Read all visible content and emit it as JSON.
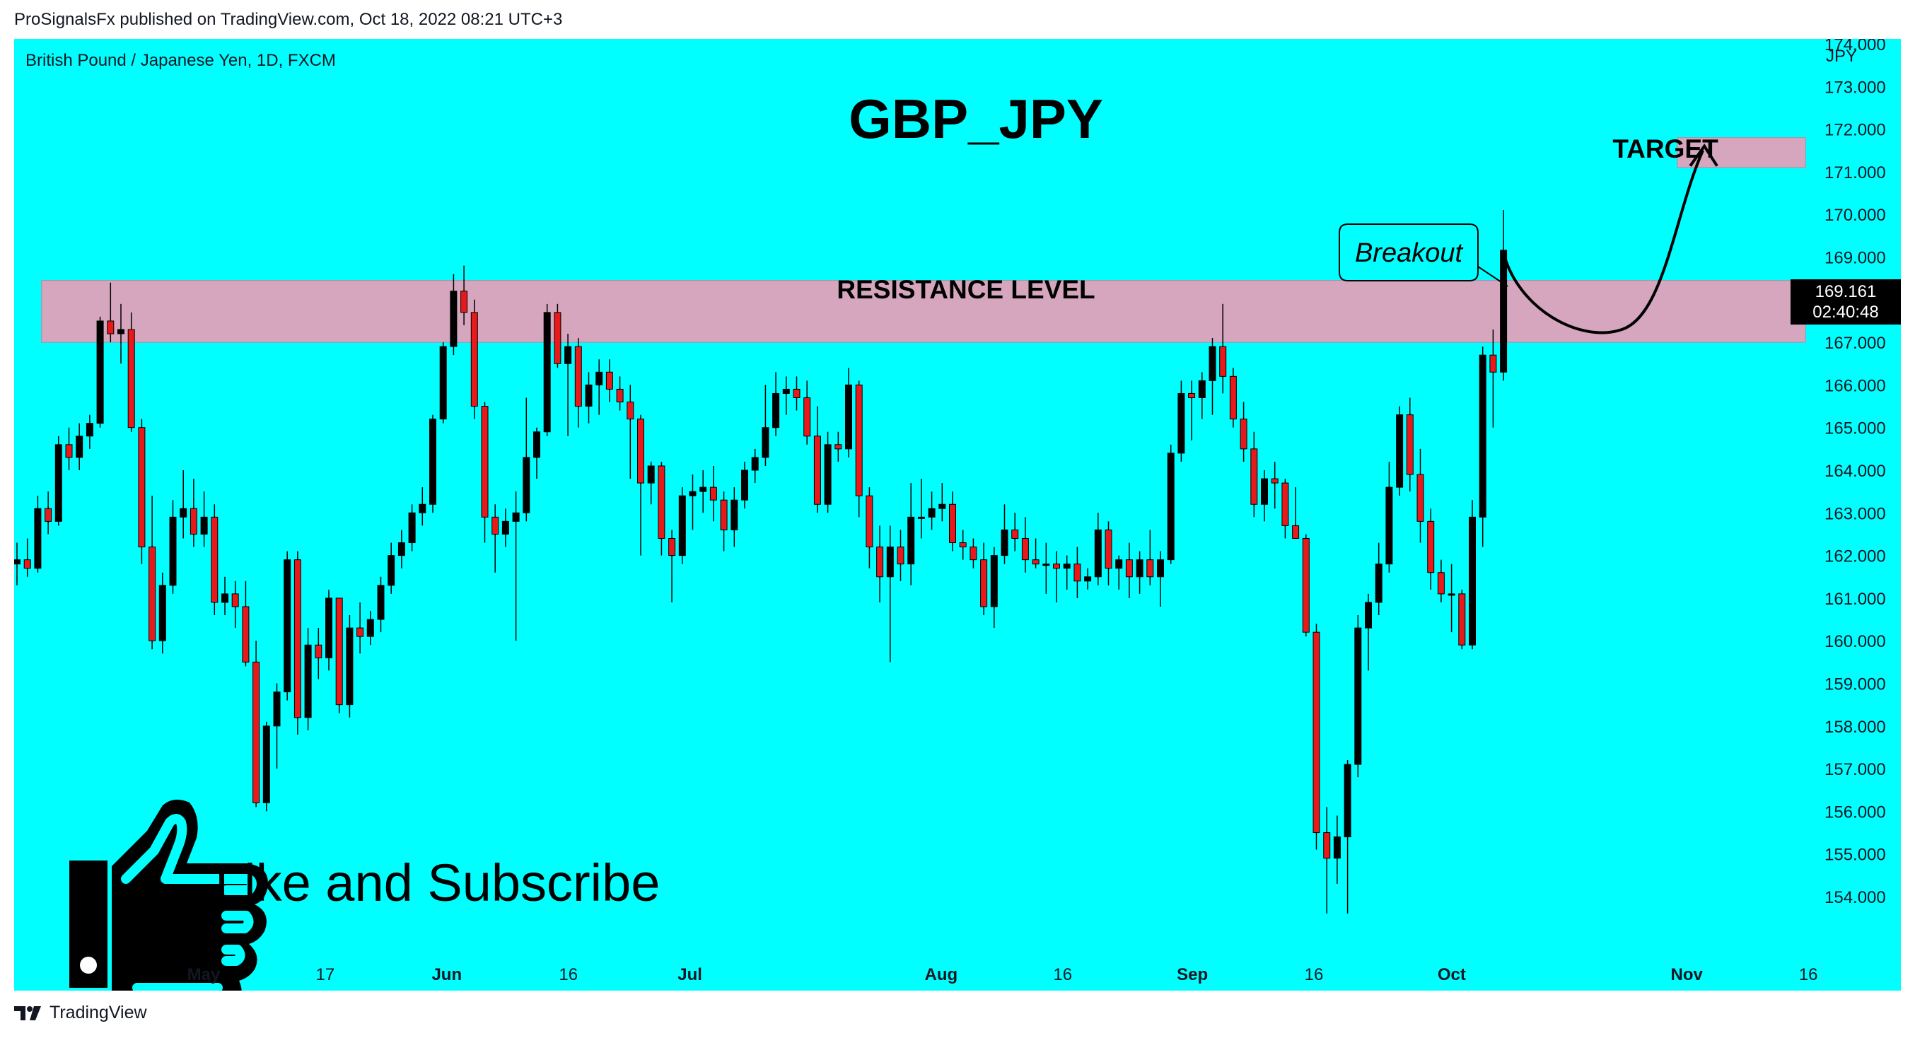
{
  "header": {
    "published_line": "ProSignalsFx published on TradingView.com, Oct 18, 2022 08:21 UTC+3"
  },
  "footer": {
    "brand": "TradingView",
    "logo_icon": "tradingview-logo-icon"
  },
  "colors": {
    "background": "#00ffff",
    "zone": "#d5a6bd",
    "bull": "#000000",
    "bear": "#e8191a",
    "price_tag": "#000000"
  },
  "chart_data": {
    "type": "candlestick",
    "symbol_line": "British Pound / Japanese Yen, 1D, FXCM",
    "title": "GBP_JPY",
    "currency": "JPY",
    "ylim": [
      153.5,
      174.3
    ],
    "y_ticks": [
      "174.000",
      "173.000",
      "172.000",
      "171.000",
      "170.000",
      "169.000",
      "168.000",
      "167.000",
      "166.000",
      "165.000",
      "164.000",
      "163.000",
      "162.000",
      "161.000",
      "160.000",
      "159.000",
      "158.000",
      "157.000",
      "156.000",
      "155.000",
      "154.000"
    ],
    "x_labels": [
      {
        "label": "May",
        "date": "2022-05-02",
        "bold": true
      },
      {
        "label": "17",
        "date": "2022-05-17",
        "bold": false
      },
      {
        "label": "Jun",
        "date": "2022-06-01",
        "bold": true
      },
      {
        "label": "16",
        "date": "2022-06-16",
        "bold": false
      },
      {
        "label": "Jul",
        "date": "2022-07-01",
        "bold": true
      },
      {
        "label": "Aug",
        "date": "2022-08-01",
        "bold": true
      },
      {
        "label": "16",
        "date": "2022-08-16",
        "bold": false
      },
      {
        "label": "Sep",
        "date": "2022-09-01",
        "bold": true
      },
      {
        "label": "16",
        "date": "2022-09-16",
        "bold": false
      },
      {
        "label": "Oct",
        "date": "2022-10-03",
        "bold": true
      },
      {
        "label": "Nov",
        "date": "2022-11-01",
        "bold": true
      },
      {
        "label": "16",
        "date": "2022-11-16",
        "bold": false
      }
    ],
    "candles": [
      {
        "o": 161.8,
        "h": 162.3,
        "l": 161.3,
        "c": 161.9
      },
      {
        "o": 161.9,
        "h": 162.4,
        "l": 161.5,
        "c": 161.7
      },
      {
        "o": 161.7,
        "h": 163.4,
        "l": 161.6,
        "c": 163.1
      },
      {
        "o": 163.1,
        "h": 163.5,
        "l": 162.5,
        "c": 162.8
      },
      {
        "o": 162.8,
        "h": 164.8,
        "l": 162.7,
        "c": 164.6
      },
      {
        "o": 164.6,
        "h": 165.0,
        "l": 164.0,
        "c": 164.3
      },
      {
        "o": 164.3,
        "h": 165.1,
        "l": 164.0,
        "c": 164.8
      },
      {
        "o": 164.8,
        "h": 165.3,
        "l": 164.5,
        "c": 165.1
      },
      {
        "o": 165.1,
        "h": 167.6,
        "l": 165.0,
        "c": 167.5
      },
      {
        "o": 167.5,
        "h": 168.4,
        "l": 167.0,
        "c": 167.2
      },
      {
        "o": 167.2,
        "h": 167.9,
        "l": 166.5,
        "c": 167.3
      },
      {
        "o": 167.3,
        "h": 167.7,
        "l": 164.9,
        "c": 165.0
      },
      {
        "o": 165.0,
        "h": 165.2,
        "l": 161.8,
        "c": 162.2
      },
      {
        "o": 162.2,
        "h": 163.4,
        "l": 159.8,
        "c": 160.0
      },
      {
        "o": 160.0,
        "h": 161.6,
        "l": 159.7,
        "c": 161.3
      },
      {
        "o": 161.3,
        "h": 163.3,
        "l": 161.1,
        "c": 162.9
      },
      {
        "o": 162.9,
        "h": 164.0,
        "l": 162.4,
        "c": 163.1
      },
      {
        "o": 163.1,
        "h": 163.8,
        "l": 162.2,
        "c": 162.5
      },
      {
        "o": 162.5,
        "h": 163.5,
        "l": 162.2,
        "c": 162.9
      },
      {
        "o": 162.9,
        "h": 163.2,
        "l": 160.6,
        "c": 160.9
      },
      {
        "o": 160.9,
        "h": 161.5,
        "l": 160.6,
        "c": 161.1
      },
      {
        "o": 161.1,
        "h": 161.4,
        "l": 160.3,
        "c": 160.8
      },
      {
        "o": 160.8,
        "h": 161.4,
        "l": 159.4,
        "c": 159.5
      },
      {
        "o": 159.5,
        "h": 160.0,
        "l": 156.1,
        "c": 156.2
      },
      {
        "o": 156.2,
        "h": 158.1,
        "l": 156.0,
        "c": 158.0
      },
      {
        "o": 158.0,
        "h": 159.0,
        "l": 157.0,
        "c": 158.8
      },
      {
        "o": 158.8,
        "h": 162.1,
        "l": 158.6,
        "c": 161.9
      },
      {
        "o": 161.9,
        "h": 162.1,
        "l": 157.8,
        "c": 158.2
      },
      {
        "o": 158.2,
        "h": 160.3,
        "l": 157.9,
        "c": 159.9
      },
      {
        "o": 159.9,
        "h": 160.3,
        "l": 159.1,
        "c": 159.6
      },
      {
        "o": 159.6,
        "h": 161.2,
        "l": 159.3,
        "c": 161.0
      },
      {
        "o": 161.0,
        "h": 161.0,
        "l": 158.3,
        "c": 158.5
      },
      {
        "o": 158.5,
        "h": 160.6,
        "l": 158.2,
        "c": 160.3
      },
      {
        "o": 160.3,
        "h": 160.9,
        "l": 159.7,
        "c": 160.1
      },
      {
        "o": 160.1,
        "h": 160.7,
        "l": 159.9,
        "c": 160.5
      },
      {
        "o": 160.5,
        "h": 161.5,
        "l": 160.2,
        "c": 161.3
      },
      {
        "o": 161.3,
        "h": 162.3,
        "l": 161.1,
        "c": 162.0
      },
      {
        "o": 162.0,
        "h": 162.6,
        "l": 161.7,
        "c": 162.3
      },
      {
        "o": 162.3,
        "h": 163.2,
        "l": 162.1,
        "c": 163.0
      },
      {
        "o": 163.0,
        "h": 163.6,
        "l": 162.7,
        "c": 163.2
      },
      {
        "o": 163.2,
        "h": 165.3,
        "l": 163.0,
        "c": 165.2
      },
      {
        "o": 165.2,
        "h": 167.0,
        "l": 165.1,
        "c": 166.9
      },
      {
        "o": 166.9,
        "h": 168.6,
        "l": 166.7,
        "c": 168.2
      },
      {
        "o": 168.2,
        "h": 168.8,
        "l": 167.4,
        "c": 167.7
      },
      {
        "o": 167.7,
        "h": 168.0,
        "l": 165.2,
        "c": 165.5
      },
      {
        "o": 165.5,
        "h": 165.6,
        "l": 162.3,
        "c": 162.9
      },
      {
        "o": 162.9,
        "h": 163.2,
        "l": 161.6,
        "c": 162.5
      },
      {
        "o": 162.5,
        "h": 163.1,
        "l": 162.2,
        "c": 162.8
      },
      {
        "o": 162.8,
        "h": 163.5,
        "l": 160.0,
        "c": 163.0
      },
      {
        "o": 163.0,
        "h": 165.7,
        "l": 162.8,
        "c": 164.3
      },
      {
        "o": 164.3,
        "h": 165.0,
        "l": 163.8,
        "c": 164.9
      },
      {
        "o": 164.9,
        "h": 167.9,
        "l": 164.8,
        "c": 167.7
      },
      {
        "o": 167.7,
        "h": 167.9,
        "l": 166.4,
        "c": 166.5
      },
      {
        "o": 166.5,
        "h": 167.2,
        "l": 164.8,
        "c": 166.9
      },
      {
        "o": 166.9,
        "h": 167.1,
        "l": 165.0,
        "c": 165.5
      },
      {
        "o": 165.5,
        "h": 166.3,
        "l": 165.1,
        "c": 166.0
      },
      {
        "o": 166.0,
        "h": 166.6,
        "l": 165.3,
        "c": 166.3
      },
      {
        "o": 166.3,
        "h": 166.6,
        "l": 165.6,
        "c": 165.9
      },
      {
        "o": 165.9,
        "h": 166.2,
        "l": 165.4,
        "c": 165.6
      },
      {
        "o": 165.6,
        "h": 166.0,
        "l": 163.8,
        "c": 165.2
      },
      {
        "o": 165.2,
        "h": 165.3,
        "l": 162.0,
        "c": 163.7
      },
      {
        "o": 163.7,
        "h": 164.2,
        "l": 163.2,
        "c": 164.1
      },
      {
        "o": 164.1,
        "h": 164.2,
        "l": 162.0,
        "c": 162.4
      },
      {
        "o": 162.4,
        "h": 162.6,
        "l": 160.9,
        "c": 162.0
      },
      {
        "o": 162.0,
        "h": 163.6,
        "l": 161.8,
        "c": 163.4
      },
      {
        "o": 163.4,
        "h": 163.9,
        "l": 162.6,
        "c": 163.5
      },
      {
        "o": 163.5,
        "h": 164.0,
        "l": 163.0,
        "c": 163.6
      },
      {
        "o": 163.6,
        "h": 164.1,
        "l": 162.8,
        "c": 163.3
      },
      {
        "o": 163.3,
        "h": 163.5,
        "l": 162.1,
        "c": 162.6
      },
      {
        "o": 162.6,
        "h": 163.6,
        "l": 162.2,
        "c": 163.3
      },
      {
        "o": 163.3,
        "h": 164.2,
        "l": 163.1,
        "c": 164.0
      },
      {
        "o": 164.0,
        "h": 164.5,
        "l": 163.7,
        "c": 164.3
      },
      {
        "o": 164.3,
        "h": 166.0,
        "l": 164.1,
        "c": 165.0
      },
      {
        "o": 165.0,
        "h": 166.3,
        "l": 164.8,
        "c": 165.8
      },
      {
        "o": 165.8,
        "h": 166.2,
        "l": 165.3,
        "c": 165.9
      },
      {
        "o": 165.9,
        "h": 166.2,
        "l": 165.4,
        "c": 165.7
      },
      {
        "o": 165.7,
        "h": 166.1,
        "l": 164.6,
        "c": 164.8
      },
      {
        "o": 164.8,
        "h": 165.5,
        "l": 163.0,
        "c": 163.2
      },
      {
        "o": 163.2,
        "h": 164.9,
        "l": 163.0,
        "c": 164.6
      },
      {
        "o": 164.6,
        "h": 164.9,
        "l": 164.2,
        "c": 164.5
      },
      {
        "o": 164.5,
        "h": 166.4,
        "l": 164.3,
        "c": 166.0
      },
      {
        "o": 166.0,
        "h": 166.1,
        "l": 162.9,
        "c": 163.4
      },
      {
        "o": 163.4,
        "h": 163.6,
        "l": 161.7,
        "c": 162.2
      },
      {
        "o": 162.2,
        "h": 162.7,
        "l": 160.9,
        "c": 161.5
      },
      {
        "o": 161.5,
        "h": 162.7,
        "l": 159.5,
        "c": 162.2
      },
      {
        "o": 162.2,
        "h": 162.6,
        "l": 161.4,
        "c": 161.8
      },
      {
        "o": 161.8,
        "h": 163.7,
        "l": 161.3,
        "c": 162.9
      },
      {
        "o": 162.9,
        "h": 163.8,
        "l": 162.4,
        "c": 162.9
      },
      {
        "o": 162.9,
        "h": 163.5,
        "l": 162.6,
        "c": 163.1
      },
      {
        "o": 163.1,
        "h": 163.7,
        "l": 162.8,
        "c": 163.2
      },
      {
        "o": 163.2,
        "h": 163.5,
        "l": 162.1,
        "c": 162.3
      },
      {
        "o": 162.3,
        "h": 162.6,
        "l": 161.9,
        "c": 162.2
      },
      {
        "o": 162.2,
        "h": 162.4,
        "l": 161.7,
        "c": 161.9
      },
      {
        "o": 161.9,
        "h": 162.3,
        "l": 160.6,
        "c": 160.8
      },
      {
        "o": 160.8,
        "h": 162.2,
        "l": 160.3,
        "c": 162.0
      },
      {
        "o": 162.0,
        "h": 163.2,
        "l": 161.8,
        "c": 162.6
      },
      {
        "o": 162.6,
        "h": 163.0,
        "l": 162.1,
        "c": 162.4
      },
      {
        "o": 162.4,
        "h": 162.9,
        "l": 161.6,
        "c": 161.9
      },
      {
        "o": 161.9,
        "h": 162.4,
        "l": 161.7,
        "c": 161.8
      },
      {
        "o": 161.8,
        "h": 162.3,
        "l": 161.1,
        "c": 161.8
      },
      {
        "o": 161.8,
        "h": 162.1,
        "l": 160.9,
        "c": 161.7
      },
      {
        "o": 161.7,
        "h": 162.0,
        "l": 161.2,
        "c": 161.8
      },
      {
        "o": 161.8,
        "h": 162.2,
        "l": 161.0,
        "c": 161.4
      },
      {
        "o": 161.4,
        "h": 161.7,
        "l": 161.2,
        "c": 161.5
      },
      {
        "o": 161.5,
        "h": 163.0,
        "l": 161.3,
        "c": 162.6
      },
      {
        "o": 162.6,
        "h": 162.8,
        "l": 161.3,
        "c": 161.7
      },
      {
        "o": 161.7,
        "h": 162.0,
        "l": 161.2,
        "c": 161.9
      },
      {
        "o": 161.9,
        "h": 162.3,
        "l": 161.0,
        "c": 161.5
      },
      {
        "o": 161.5,
        "h": 162.1,
        "l": 161.1,
        "c": 161.9
      },
      {
        "o": 161.9,
        "h": 162.6,
        "l": 161.3,
        "c": 161.5
      },
      {
        "o": 161.5,
        "h": 162.1,
        "l": 160.8,
        "c": 161.9
      },
      {
        "o": 161.9,
        "h": 164.6,
        "l": 161.8,
        "c": 164.4
      },
      {
        "o": 164.4,
        "h": 166.1,
        "l": 164.2,
        "c": 165.8
      },
      {
        "o": 165.8,
        "h": 166.1,
        "l": 164.7,
        "c": 165.7
      },
      {
        "o": 165.7,
        "h": 166.3,
        "l": 165.2,
        "c": 166.1
      },
      {
        "o": 166.1,
        "h": 167.1,
        "l": 165.3,
        "c": 166.9
      },
      {
        "o": 166.9,
        "h": 167.9,
        "l": 165.8,
        "c": 166.2
      },
      {
        "o": 166.2,
        "h": 166.4,
        "l": 165.0,
        "c": 165.2
      },
      {
        "o": 165.2,
        "h": 165.6,
        "l": 164.2,
        "c": 164.5
      },
      {
        "o": 164.5,
        "h": 164.9,
        "l": 162.9,
        "c": 163.2
      },
      {
        "o": 163.2,
        "h": 164.0,
        "l": 162.8,
        "c": 163.8
      },
      {
        "o": 163.8,
        "h": 164.2,
        "l": 163.1,
        "c": 163.7
      },
      {
        "o": 163.7,
        "h": 163.8,
        "l": 162.4,
        "c": 162.7
      },
      {
        "o": 162.7,
        "h": 163.6,
        "l": 162.5,
        "c": 162.4
      },
      {
        "o": 162.4,
        "h": 162.5,
        "l": 160.1,
        "c": 160.2
      },
      {
        "o": 160.2,
        "h": 160.4,
        "l": 155.1,
        "c": 155.5
      },
      {
        "o": 155.5,
        "h": 156.1,
        "l": 153.6,
        "c": 154.9
      },
      {
        "o": 154.9,
        "h": 155.9,
        "l": 154.3,
        "c": 155.4
      },
      {
        "o": 155.4,
        "h": 157.2,
        "l": 153.6,
        "c": 157.1
      },
      {
        "o": 157.1,
        "h": 160.6,
        "l": 156.8,
        "c": 160.3
      },
      {
        "o": 160.3,
        "h": 161.1,
        "l": 159.3,
        "c": 160.9
      },
      {
        "o": 160.9,
        "h": 162.3,
        "l": 160.6,
        "c": 161.8
      },
      {
        "o": 161.8,
        "h": 164.2,
        "l": 161.6,
        "c": 163.6
      },
      {
        "o": 163.6,
        "h": 165.5,
        "l": 163.4,
        "c": 165.3
      },
      {
        "o": 165.3,
        "h": 165.7,
        "l": 163.5,
        "c": 163.9
      },
      {
        "o": 163.9,
        "h": 164.5,
        "l": 162.3,
        "c": 162.8
      },
      {
        "o": 162.8,
        "h": 163.1,
        "l": 161.2,
        "c": 161.6
      },
      {
        "o": 161.6,
        "h": 161.9,
        "l": 160.9,
        "c": 161.1
      },
      {
        "o": 161.1,
        "h": 161.8,
        "l": 160.2,
        "c": 161.1
      },
      {
        "o": 161.1,
        "h": 161.2,
        "l": 159.8,
        "c": 159.9
      },
      {
        "o": 159.9,
        "h": 163.3,
        "l": 159.8,
        "c": 162.9
      },
      {
        "o": 162.9,
        "h": 166.9,
        "l": 162.2,
        "c": 166.7
      },
      {
        "o": 166.7,
        "h": 167.3,
        "l": 165.0,
        "c": 166.3
      },
      {
        "o": 166.3,
        "h": 170.1,
        "l": 166.1,
        "c": 169.16
      }
    ],
    "current_price": "169.161",
    "countdown": "02:40:48",
    "zones": [
      {
        "label": "RESISTANCE LEVEL",
        "top": 168.45,
        "bottom": 167.0,
        "start_index": 1,
        "end_date": "2022-11-16"
      },
      {
        "label": "TARGET",
        "top": 171.8,
        "bottom": 171.1,
        "start_date": "2022-10-27",
        "end_date": "2022-11-16"
      }
    ],
    "annotations": {
      "breakout": "Breakout",
      "cta": "Like and Subscribe",
      "cta_icon": "thumbs-up-icon"
    },
    "projection": {
      "start_price": 169.1,
      "low_date": "2022-10-24",
      "low_price": 167.3,
      "end_date": "2022-11-03",
      "end_price": 171.6
    }
  }
}
